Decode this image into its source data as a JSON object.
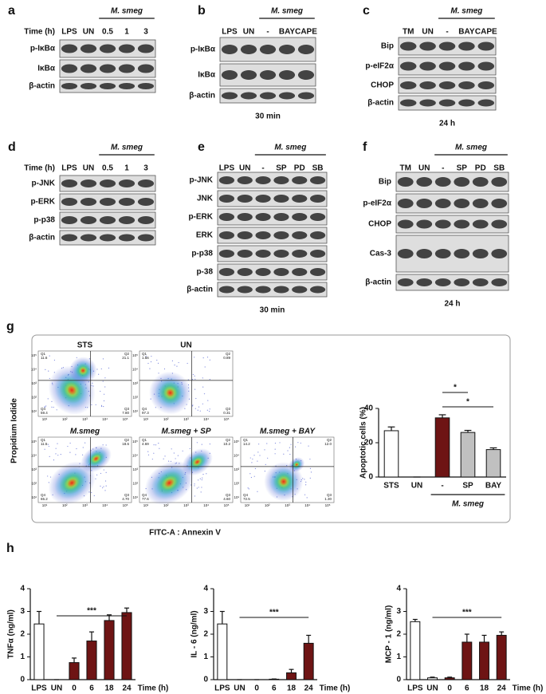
{
  "figure": {
    "blots": {
      "a": {
        "letter": "a",
        "group": "M. smeg",
        "lane_header": "Time (h)",
        "lanes": [
          "LPS",
          "UN",
          "0.5",
          "1",
          "3"
        ],
        "rows": [
          "p-IκBα",
          "IκBα",
          "β-actin"
        ]
      },
      "b": {
        "letter": "b",
        "group": "M. smeg",
        "lanes": [
          "LPS",
          "UN",
          "-",
          "BAY",
          "CAPE"
        ],
        "rows": [
          "p-IκBα",
          "IκBα",
          "β-actin"
        ],
        "footer": "30 min"
      },
      "c": {
        "letter": "c",
        "group": "M. smeg",
        "lanes": [
          "TM",
          "UN",
          "-",
          "BAY",
          "CAPE"
        ],
        "rows": [
          "Bip",
          "p-eIF2α",
          "CHOP",
          "β-actin"
        ],
        "footer": "24 h"
      },
      "d": {
        "letter": "d",
        "group": "M. smeg",
        "lane_header": "Time (h)",
        "lanes": [
          "LPS",
          "UN",
          "0.5",
          "1",
          "3"
        ],
        "rows": [
          "p-JNK",
          "p-ERK",
          "p-p38",
          "β-actin"
        ]
      },
      "e": {
        "letter": "e",
        "group": "M. smeg",
        "lanes": [
          "LPS",
          "UN",
          "-",
          "SP",
          "PD",
          "SB"
        ],
        "rows": [
          "p-JNK",
          "JNK",
          "p-ERK",
          "ERK",
          "p-p38",
          "p-38",
          "β-actin"
        ],
        "footer": "30 min"
      },
      "f": {
        "letter": "f",
        "group": "M. smeg",
        "lanes": [
          "TM",
          "UN",
          "-",
          "SP",
          "PD",
          "SB"
        ],
        "rows": [
          "Bip",
          "p-eIF2α",
          "CHOP",
          "Cas-3",
          "β-actin"
        ],
        "footer": "24 h"
      }
    },
    "flow": {
      "letter": "g",
      "y_label": "Propidium Iodide",
      "x_label": "FITC-A : Annexin V",
      "decades": [
        "10¹",
        "10²",
        "10³",
        "10⁴",
        "10⁵"
      ],
      "plots": [
        {
          "title": "STS",
          "quadrants": [
            {
              "name": "Q1",
              "value": "11.6"
            },
            {
              "name": "Q2",
              "value": "21.1"
            },
            {
              "name": "Q4",
              "value": "59.4"
            },
            {
              "name": "Q3",
              "value": "7.80"
            }
          ]
        },
        {
          "title": "UN",
          "quadrants": [
            {
              "name": "Q1",
              "value": "1.56"
            },
            {
              "name": "Q2",
              "value": "0.89"
            },
            {
              "name": "Q4",
              "value": "97.3"
            },
            {
              "name": "Q3",
              "value": "0.31"
            }
          ]
        },
        {
          "title": "M.smeg",
          "quadrants": [
            {
              "name": "Q1",
              "value": "11.5"
            },
            {
              "name": "Q2",
              "value": "18.6"
            },
            {
              "name": "Q4",
              "value": "65.2"
            },
            {
              "name": "Q3",
              "value": "4.70"
            }
          ]
        },
        {
          "title": "M.smeg + SP",
          "quadrants": [
            {
              "name": "Q1",
              "value": "4.69"
            },
            {
              "name": "Q2",
              "value": "10.2"
            },
            {
              "name": "Q4",
              "value": "77.6"
            },
            {
              "name": "Q3",
              "value": "4.60"
            }
          ]
        },
        {
          "title": "M.smeg + BAY",
          "quadrants": [
            {
              "name": "Q1",
              "value": "14.2"
            },
            {
              "name": "Q2",
              "value": "12.0"
            },
            {
              "name": "Q4",
              "value": "72.5"
            },
            {
              "name": "Q3",
              "value": "1.30"
            }
          ]
        }
      ]
    },
    "cytokine_letter": "h"
  },
  "chart_data": [
    {
      "type": "bar",
      "y_label": "Apoptotic cells (%)",
      "categories": [
        "STS",
        "UN",
        "-",
        "SP",
        "BAY"
      ],
      "group_label": "M. smeg",
      "values": [
        27,
        0,
        34.5,
        26,
        16
      ],
      "errors": [
        2.2,
        0,
        1.8,
        1.2,
        1
      ],
      "colors": [
        "#ffffff",
        "#ffffff",
        "#6e1414",
        "#c0c0c0",
        "#c0c0c0"
      ],
      "ylim": [
        0,
        40
      ],
      "yticks": [
        0,
        20,
        40
      ],
      "annotations": [
        "*",
        "*"
      ]
    },
    {
      "type": "bar",
      "y_label": "TNFα (ng/ml)",
      "x_label": "Time (h)",
      "categories": [
        "LPS",
        "UN",
        "0",
        "6",
        "18",
        "24"
      ],
      "values": [
        2.45,
        0,
        0.75,
        1.7,
        2.6,
        2.95
      ],
      "errors": [
        0.55,
        0,
        0.2,
        0.4,
        0.25,
        0.2
      ],
      "colors": [
        "#ffffff",
        "#ffffff",
        "#6e1414",
        "#6e1414",
        "#6e1414",
        "#6e1414"
      ],
      "ylim": [
        0,
        4
      ],
      "yticks": [
        0,
        1,
        2,
        3,
        4
      ],
      "annotations": [
        "***"
      ]
    },
    {
      "type": "bar",
      "y_label": "IL - 6 (ng/ml)",
      "x_label": "Time (h)",
      "categories": [
        "LPS",
        "UN",
        "0",
        "6",
        "18",
        "24"
      ],
      "values": [
        2.45,
        0,
        0,
        0.02,
        0.3,
        1.6
      ],
      "errors": [
        0.55,
        0,
        0,
        0.01,
        0.15,
        0.35
      ],
      "colors": [
        "#ffffff",
        "#ffffff",
        "#6e1414",
        "#6e1414",
        "#6e1414",
        "#6e1414"
      ],
      "ylim": [
        0,
        4
      ],
      "yticks": [
        0,
        1,
        2,
        3,
        4
      ],
      "annotations": [
        "***"
      ]
    },
    {
      "type": "bar",
      "y_label": "MCP - 1 (ng/ml)",
      "x_label": "Time (h)",
      "categories": [
        "LPS",
        "UN",
        "0",
        "6",
        "18",
        "24"
      ],
      "values": [
        2.55,
        0.08,
        0.08,
        1.65,
        1.65,
        1.95
      ],
      "errors": [
        0.1,
        0.03,
        0.03,
        0.35,
        0.3,
        0.15
      ],
      "colors": [
        "#ffffff",
        "#ffffff",
        "#6e1414",
        "#6e1414",
        "#6e1414",
        "#6e1414"
      ],
      "ylim": [
        0,
        4
      ],
      "yticks": [
        0,
        1,
        2,
        3,
        4
      ],
      "annotations": [
        "***"
      ]
    }
  ]
}
